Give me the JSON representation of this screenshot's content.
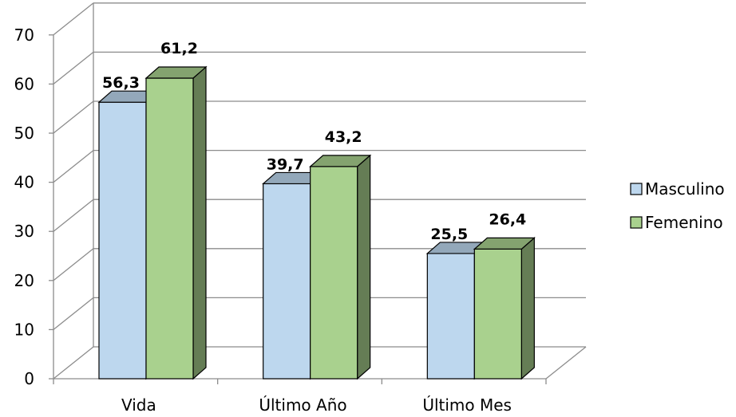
{
  "chart_data": {
    "type": "bar",
    "categories": [
      "Vida",
      "Último Año",
      "Último Mes"
    ],
    "series": [
      {
        "name": "Masculino",
        "values": [
          56.3,
          39.7,
          25.5
        ],
        "labels": [
          "56,3",
          "39,7",
          "25,5"
        ],
        "color": "#BDD7EE"
      },
      {
        "name": "Femenino",
        "values": [
          61.2,
          43.2,
          26.4
        ],
        "labels": [
          "61,2",
          "43,2",
          "26,4"
        ],
        "color": "#A9D18E"
      }
    ],
    "ylim": [
      0,
      70
    ],
    "yticks": [
      "0",
      "10",
      "20",
      "30",
      "40",
      "50",
      "60",
      "70"
    ],
    "grid": true,
    "three_d": true,
    "legend_position": "right"
  }
}
